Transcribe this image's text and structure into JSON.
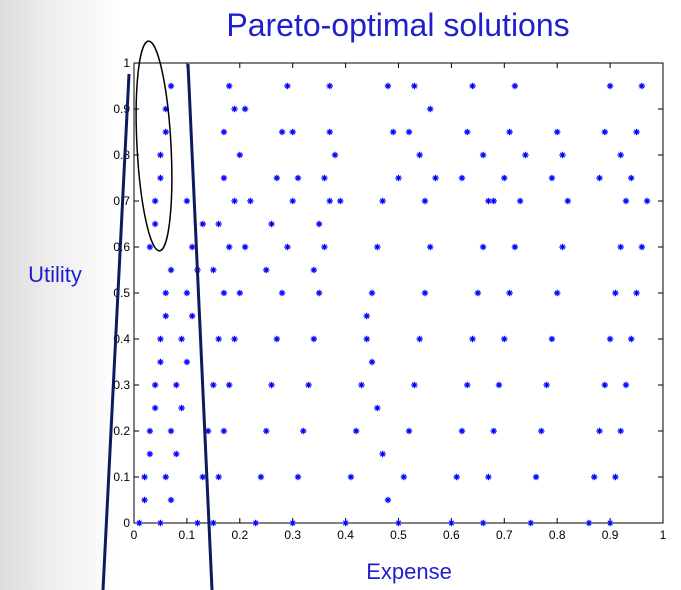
{
  "slide": {
    "title": "Pareto-optimal solutions",
    "xlabel": "Expense",
    "ylabel": "Utility"
  },
  "chart_data": {
    "type": "scatter",
    "title": "",
    "xlabel": "",
    "ylabel": "",
    "xlim": [
      0,
      1
    ],
    "ylim": [
      0,
      1
    ],
    "x_ticks": [
      "0",
      "0.1",
      "0.2",
      "0.3",
      "0.4",
      "0.5",
      "0.6",
      "0.7",
      "0.8",
      "0.9",
      "1"
    ],
    "y_ticks": [
      "0",
      "0.1",
      "0.2",
      "0.3",
      "0.4",
      "0.5",
      "0.6",
      "0.7",
      "0.8",
      "0.9",
      "1"
    ],
    "grid": false,
    "marker": "*",
    "series": [
      {
        "color": "#0000ff",
        "points": [
          [
            0.01,
            0.0
          ],
          [
            0.02,
            0.1
          ],
          [
            0.03,
            0.2
          ],
          [
            0.04,
            0.3
          ],
          [
            0.05,
            0.4
          ],
          [
            0.06,
            0.5
          ],
          [
            0.03,
            0.6
          ],
          [
            0.04,
            0.7
          ],
          [
            0.05,
            0.8
          ],
          [
            0.06,
            0.9
          ],
          [
            0.02,
            0.05
          ],
          [
            0.03,
            0.15
          ],
          [
            0.04,
            0.25
          ],
          [
            0.05,
            0.35
          ],
          [
            0.06,
            0.45
          ],
          [
            0.07,
            0.55
          ],
          [
            0.04,
            0.65
          ],
          [
            0.05,
            0.75
          ],
          [
            0.06,
            0.85
          ],
          [
            0.07,
            0.95
          ],
          [
            0.07,
            0.05
          ],
          [
            0.08,
            0.15
          ],
          [
            0.09,
            0.25
          ],
          [
            0.1,
            0.35
          ],
          [
            0.11,
            0.45
          ],
          [
            0.12,
            0.55
          ],
          [
            0.13,
            0.65
          ],
          [
            0.1,
            0.7
          ],
          [
            0.05,
            0.0
          ],
          [
            0.06,
            0.1
          ],
          [
            0.07,
            0.2
          ],
          [
            0.08,
            0.3
          ],
          [
            0.09,
            0.4
          ],
          [
            0.1,
            0.5
          ],
          [
            0.11,
            0.6
          ],
          [
            0.12,
            0.0
          ],
          [
            0.13,
            0.1
          ],
          [
            0.14,
            0.2
          ],
          [
            0.15,
            0.3
          ],
          [
            0.16,
            0.4
          ],
          [
            0.17,
            0.5
          ],
          [
            0.18,
            0.6
          ],
          [
            0.19,
            0.7
          ],
          [
            0.15,
            0.0
          ],
          [
            0.16,
            0.1
          ],
          [
            0.17,
            0.2
          ],
          [
            0.18,
            0.3
          ],
          [
            0.19,
            0.4
          ],
          [
            0.2,
            0.5
          ],
          [
            0.21,
            0.6
          ],
          [
            0.22,
            0.7
          ],
          [
            0.15,
            0.55
          ],
          [
            0.16,
            0.65
          ],
          [
            0.17,
            0.75
          ],
          [
            0.17,
            0.85
          ],
          [
            0.18,
            0.95
          ],
          [
            0.19,
            0.9
          ],
          [
            0.2,
            0.8
          ],
          [
            0.21,
            0.9
          ],
          [
            0.23,
            0.0
          ],
          [
            0.24,
            0.1
          ],
          [
            0.25,
            0.2
          ],
          [
            0.26,
            0.3
          ],
          [
            0.27,
            0.4
          ],
          [
            0.28,
            0.5
          ],
          [
            0.29,
            0.6
          ],
          [
            0.3,
            0.7
          ],
          [
            0.25,
            0.55
          ],
          [
            0.26,
            0.65
          ],
          [
            0.27,
            0.75
          ],
          [
            0.28,
            0.85
          ],
          [
            0.29,
            0.95
          ],
          [
            0.3,
            0.85
          ],
          [
            0.31,
            0.75
          ],
          [
            0.3,
            0.0
          ],
          [
            0.31,
            0.1
          ],
          [
            0.32,
            0.2
          ],
          [
            0.33,
            0.3
          ],
          [
            0.34,
            0.4
          ],
          [
            0.35,
            0.5
          ],
          [
            0.36,
            0.6
          ],
          [
            0.37,
            0.7
          ],
          [
            0.34,
            0.55
          ],
          [
            0.35,
            0.65
          ],
          [
            0.36,
            0.75
          ],
          [
            0.37,
            0.85
          ],
          [
            0.37,
            0.95
          ],
          [
            0.38,
            0.8
          ],
          [
            0.39,
            0.7
          ],
          [
            0.4,
            0.0
          ],
          [
            0.41,
            0.1
          ],
          [
            0.42,
            0.2
          ],
          [
            0.43,
            0.3
          ],
          [
            0.44,
            0.4
          ],
          [
            0.45,
            0.5
          ],
          [
            0.46,
            0.6
          ],
          [
            0.47,
            0.7
          ],
          [
            0.44,
            0.45
          ],
          [
            0.45,
            0.35
          ],
          [
            0.46,
            0.25
          ],
          [
            0.47,
            0.15
          ],
          [
            0.48,
            0.05
          ],
          [
            0.48,
            0.95
          ],
          [
            0.49,
            0.85
          ],
          [
            0.5,
            0.75
          ],
          [
            0.5,
            0.0
          ],
          [
            0.51,
            0.1
          ],
          [
            0.52,
            0.2
          ],
          [
            0.53,
            0.3
          ],
          [
            0.54,
            0.4
          ],
          [
            0.55,
            0.5
          ],
          [
            0.56,
            0.6
          ],
          [
            0.55,
            0.7
          ],
          [
            0.52,
            0.85
          ],
          [
            0.53,
            0.95
          ],
          [
            0.54,
            0.8
          ],
          [
            0.56,
            0.9
          ],
          [
            0.57,
            0.75
          ],
          [
            0.6,
            0.0
          ],
          [
            0.61,
            0.1
          ],
          [
            0.62,
            0.2
          ],
          [
            0.63,
            0.3
          ],
          [
            0.64,
            0.4
          ],
          [
            0.65,
            0.5
          ],
          [
            0.66,
            0.6
          ],
          [
            0.67,
            0.7
          ],
          [
            0.62,
            0.75
          ],
          [
            0.63,
            0.85
          ],
          [
            0.64,
            0.95
          ],
          [
            0.66,
            0.8
          ],
          [
            0.68,
            0.7
          ],
          [
            0.66,
            0.0
          ],
          [
            0.67,
            0.1
          ],
          [
            0.68,
            0.2
          ],
          [
            0.69,
            0.3
          ],
          [
            0.7,
            0.4
          ],
          [
            0.71,
            0.5
          ],
          [
            0.72,
            0.6
          ],
          [
            0.73,
            0.7
          ],
          [
            0.7,
            0.75
          ],
          [
            0.71,
            0.85
          ],
          [
            0.72,
            0.95
          ],
          [
            0.74,
            0.8
          ],
          [
            0.75,
            0.0
          ],
          [
            0.76,
            0.1
          ],
          [
            0.77,
            0.2
          ],
          [
            0.78,
            0.3
          ],
          [
            0.79,
            0.4
          ],
          [
            0.8,
            0.5
          ],
          [
            0.81,
            0.6
          ],
          [
            0.82,
            0.7
          ],
          [
            0.79,
            0.75
          ],
          [
            0.8,
            0.85
          ],
          [
            0.81,
            0.8
          ],
          [
            0.86,
            0.0
          ],
          [
            0.87,
            0.1
          ],
          [
            0.88,
            0.2
          ],
          [
            0.89,
            0.3
          ],
          [
            0.9,
            0.4
          ],
          [
            0.91,
            0.5
          ],
          [
            0.92,
            0.6
          ],
          [
            0.93,
            0.7
          ],
          [
            0.88,
            0.75
          ],
          [
            0.89,
            0.85
          ],
          [
            0.9,
            0.95
          ],
          [
            0.92,
            0.8
          ],
          [
            0.9,
            0.0
          ],
          [
            0.91,
            0.1
          ],
          [
            0.92,
            0.2
          ],
          [
            0.93,
            0.3
          ],
          [
            0.94,
            0.4
          ],
          [
            0.95,
            0.5
          ],
          [
            0.96,
            0.6
          ],
          [
            0.97,
            0.7
          ],
          [
            0.94,
            0.75
          ],
          [
            0.95,
            0.85
          ],
          [
            0.96,
            0.95
          ]
        ]
      }
    ],
    "annotations": [
      "ellipse around the upper-left cluster (x≈0.03–0.07, y≈0.6–0.96)",
      "two dark-blue straight lines bracketing the leftmost expense band (x≈0.02–0.15)"
    ]
  },
  "colors": {
    "title": "#1f1fcf",
    "axis_title": "#1f1fcf",
    "markers": "#0000ff",
    "bracket_lines": "#0c1a5e",
    "ellipse": "#000000"
  }
}
